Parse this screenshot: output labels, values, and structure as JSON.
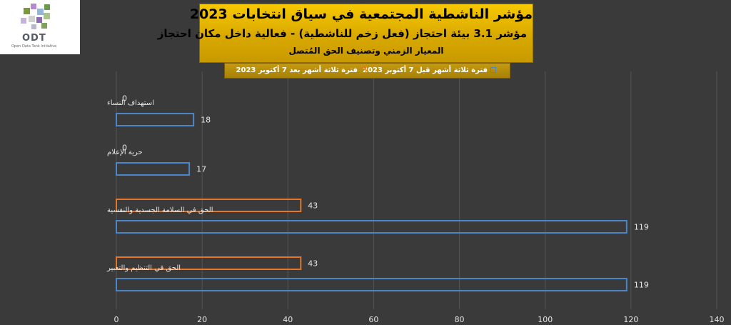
{
  "logo": {
    "name": "ODT",
    "tagline": "Open Data Tank Initiative"
  },
  "title": {
    "line1": "مؤشر الناشطية المجتمعية في سياق انتخابات 2023",
    "line2": "مؤشر 3.1 بيئة احتجاز (فعل زخم للناشطية) - فعالية داخل مكان احتجاز",
    "line3": "المعيار الزمني وتصنيف الحق المُتصل"
  },
  "chart_data": {
    "type": "bar",
    "orientation": "horizontal",
    "categories": [
      "استهداف النساء",
      "حرية الإعلام",
      "الحق في السلامة الجسدية والنفسية",
      "الحق في التنظيم والتعبير"
    ],
    "series": [
      {
        "name": "فترة ثلاثة أشهر بعد 7 أكتوبر 2023",
        "color": "#e2762b",
        "values": [
          0,
          0,
          43,
          43
        ]
      },
      {
        "name": "فترة ثلاثة أشهر قبل 7 أكتوبر 2023",
        "color": "#4a86c8",
        "values": [
          18,
          17,
          119,
          119
        ]
      }
    ],
    "xlim": [
      0,
      140
    ],
    "xticks": [
      0,
      20,
      40,
      60,
      80,
      100,
      120,
      140
    ],
    "grid": true,
    "legend_position": "top"
  }
}
